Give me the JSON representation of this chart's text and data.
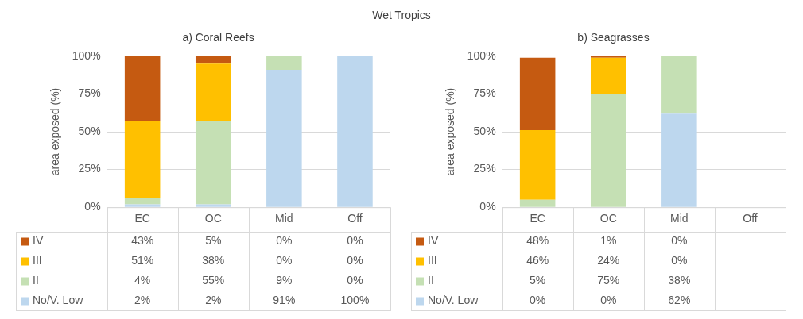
{
  "chart_data": [
    {
      "type": "bar",
      "title": "a) Coral Reefs",
      "annotations": [
        "Wet Tropics"
      ],
      "ylabel": "area exposed (%)",
      "categories": [
        "EC",
        "OC",
        "Mid",
        "Off"
      ],
      "stacked": true,
      "ylim": [
        0,
        100
      ],
      "yticks": [
        {
          "value": 0,
          "label": "0%"
        },
        {
          "value": 25,
          "label": "25%"
        },
        {
          "value": 50,
          "label": "50%"
        },
        {
          "value": 75,
          "label": "75%"
        },
        {
          "value": 100,
          "label": "100%"
        }
      ],
      "grid": "y",
      "legend": "bottom",
      "series": [
        {
          "name": "No/V. Low",
          "color": "#bdd7ee",
          "values": [
            2,
            2,
            91,
            100
          ],
          "value_labels": [
            "2%",
            "2%",
            "91%",
            "100%"
          ]
        },
        {
          "name": "II",
          "color": "#c5e0b4",
          "values": [
            4,
            55,
            9,
            0
          ],
          "value_labels": [
            "4%",
            "55%",
            "9%",
            "0%"
          ]
        },
        {
          "name": "III",
          "color": "#ffc000",
          "values": [
            51,
            38,
            0,
            0
          ],
          "value_labels": [
            "51%",
            "38%",
            "0%",
            "0%"
          ]
        },
        {
          "name": "IV",
          "color": "#c55a11",
          "values": [
            43,
            5,
            0,
            0
          ],
          "value_labels": [
            "43%",
            "5%",
            "0%",
            "0%"
          ]
        }
      ]
    },
    {
      "type": "bar",
      "title": "b) Seagrasses",
      "ylabel": "area exposed (%)",
      "categories": [
        "EC",
        "OC",
        "Mid",
        "Off"
      ],
      "stacked": true,
      "ylim": [
        0,
        100
      ],
      "yticks": [
        {
          "value": 0,
          "label": "0%"
        },
        {
          "value": 25,
          "label": "25%"
        },
        {
          "value": 50,
          "label": "50%"
        },
        {
          "value": 75,
          "label": "75%"
        },
        {
          "value": 100,
          "label": "100%"
        }
      ],
      "grid": "y",
      "legend": "bottom",
      "series": [
        {
          "name": "No/V. Low",
          "color": "#bdd7ee",
          "values": [
            0,
            0,
            62,
            null
          ],
          "value_labels": [
            "0%",
            "0%",
            "62%",
            null
          ]
        },
        {
          "name": "II",
          "color": "#c5e0b4",
          "values": [
            5,
            75,
            38,
            null
          ],
          "value_labels": [
            "5%",
            "75%",
            "38%",
            null
          ]
        },
        {
          "name": "III",
          "color": "#ffc000",
          "values": [
            46,
            24,
            0,
            null
          ],
          "value_labels": [
            "46%",
            "24%",
            "0%",
            null
          ]
        },
        {
          "name": "IV",
          "color": "#c55a11",
          "values": [
            48,
            1,
            0,
            null
          ],
          "value_labels": [
            "48%",
            "1%",
            "0%",
            null
          ]
        }
      ]
    }
  ]
}
